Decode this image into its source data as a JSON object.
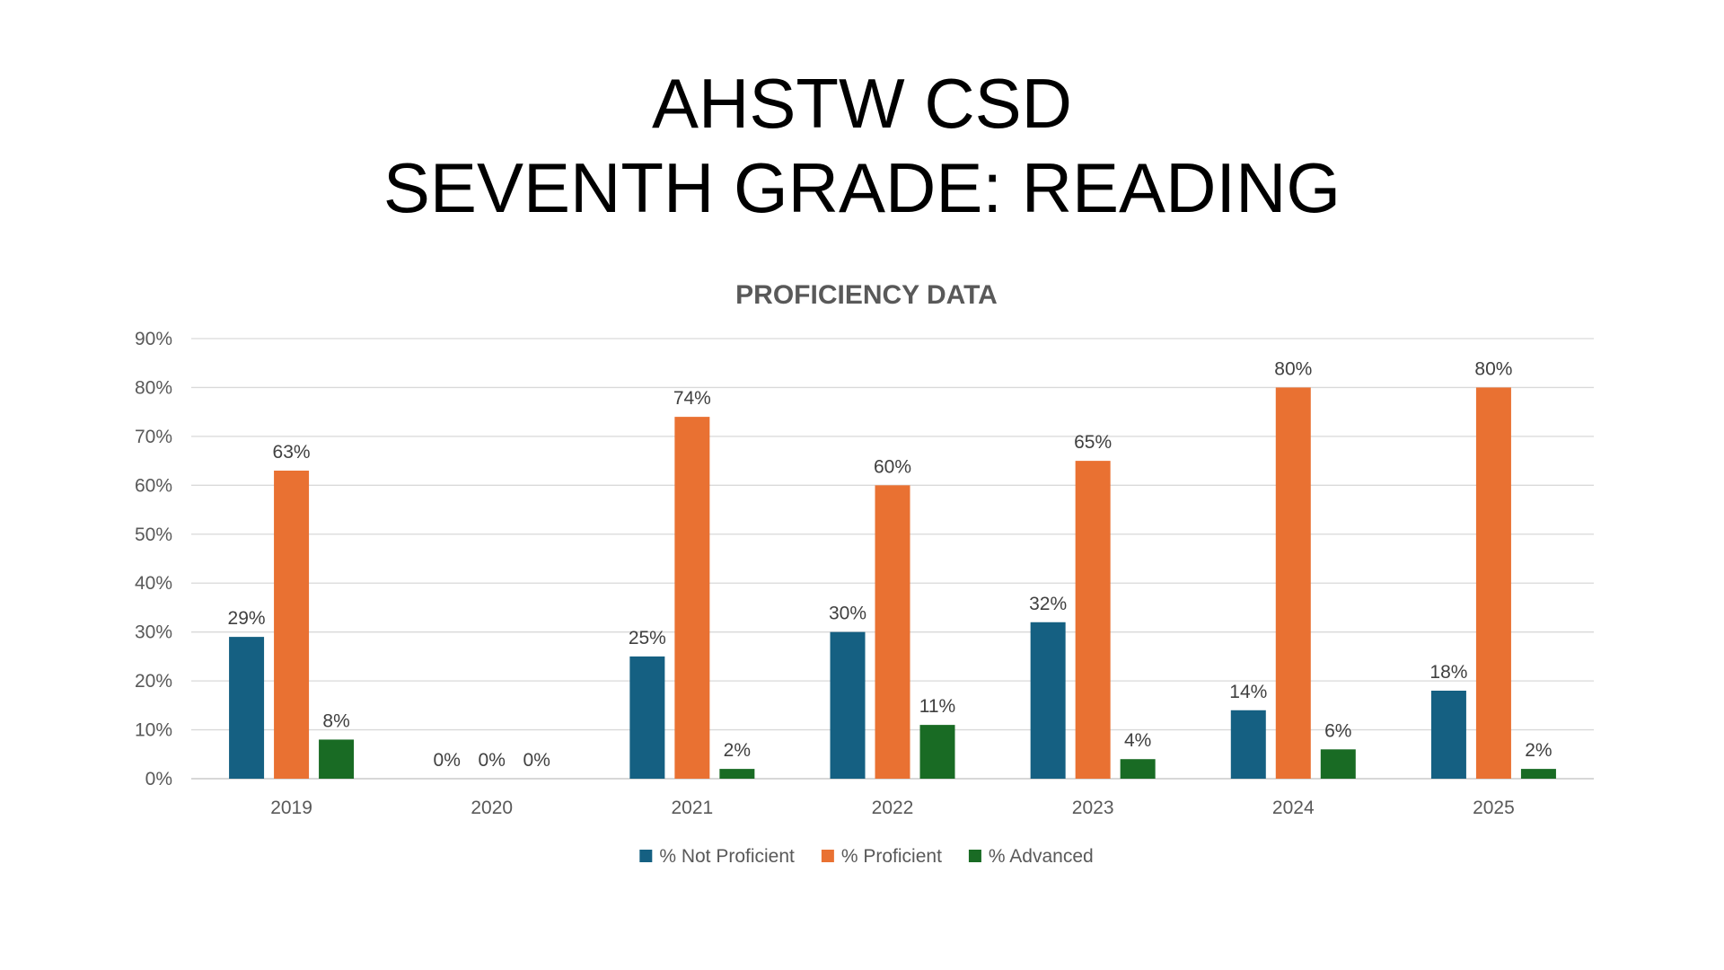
{
  "slide": {
    "title_line_1": "AHSTW CSD",
    "title_line_2": "SEVENTH GRADE: READING"
  },
  "chart_data": {
    "type": "bar",
    "title": "PROFICIENCY DATA",
    "xlabel": "",
    "ylabel": "",
    "categories": [
      "2019",
      "2020",
      "2021",
      "2022",
      "2023",
      "2024",
      "2025"
    ],
    "series": [
      {
        "name": "% Not Proficient",
        "color": "#156082",
        "values": [
          29,
          0,
          25,
          30,
          32,
          14,
          18
        ]
      },
      {
        "name": "% Proficient",
        "color": "#E97132",
        "values": [
          63,
          0,
          74,
          60,
          65,
          80,
          80
        ]
      },
      {
        "name": "% Advanced",
        "color": "#196B24",
        "values": [
          8,
          0,
          2,
          11,
          4,
          6,
          2
        ]
      }
    ],
    "ylim": [
      0,
      90
    ],
    "yticks": [
      0,
      10,
      20,
      30,
      40,
      50,
      60,
      70,
      80,
      90
    ],
    "value_format": "percent",
    "grid": true,
    "legend_position": "bottom",
    "data_labels": true
  }
}
